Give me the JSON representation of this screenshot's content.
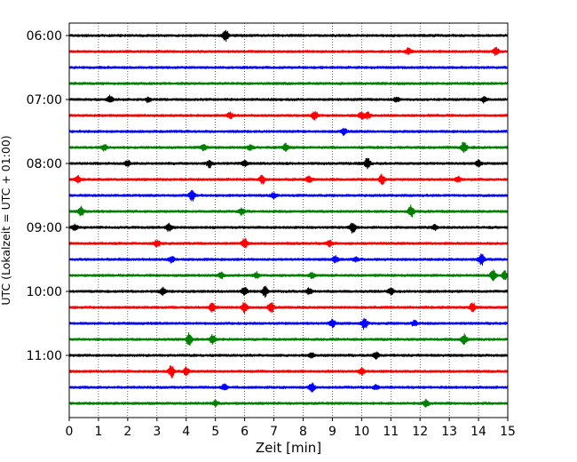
{
  "chart_data": {
    "type": "line",
    "xlabel": "Zeit  [min]",
    "ylabel": "UTC (Lokalzeit = UTC + 01:00)",
    "xlim": [
      0,
      15
    ],
    "x_ticks": [
      "0",
      "1",
      "2",
      "3",
      "4",
      "5",
      "6",
      "7",
      "8",
      "9",
      "10",
      "11",
      "12",
      "13",
      "14",
      "15"
    ],
    "y_ticks": [
      "06:00",
      "07:00",
      "08:00",
      "09:00",
      "10:00",
      "11:00"
    ],
    "grid": "vertical dotted at each minute",
    "trace_interval_minutes": 15,
    "trace_count": 24,
    "trace_colors": [
      "#000000",
      "#ff0000",
      "#0000ff",
      "#008000"
    ],
    "series": [
      {
        "start": "06:00",
        "color": "#000000",
        "events": [
          [
            5.35,
            1.0
          ]
        ]
      },
      {
        "start": "06:15",
        "color": "#ff0000",
        "events": [
          [
            11.6,
            0.5
          ],
          [
            14.6,
            0.6
          ]
        ]
      },
      {
        "start": "06:30",
        "color": "#0000ff",
        "events": []
      },
      {
        "start": "06:45",
        "color": "#008000",
        "events": []
      },
      {
        "start": "07:00",
        "color": "#000000",
        "events": [
          [
            1.4,
            0.6
          ],
          [
            2.7,
            0.4
          ],
          [
            11.2,
            0.4
          ],
          [
            14.2,
            0.5
          ]
        ]
      },
      {
        "start": "07:15",
        "color": "#ff0000",
        "events": [
          [
            5.5,
            0.5
          ],
          [
            8.4,
            0.7
          ],
          [
            10.0,
            0.6
          ],
          [
            10.2,
            0.5
          ]
        ]
      },
      {
        "start": "07:30",
        "color": "#0000ff",
        "events": [
          [
            9.4,
            0.5
          ]
        ]
      },
      {
        "start": "07:45",
        "color": "#008000",
        "events": [
          [
            1.2,
            0.5
          ],
          [
            4.6,
            0.5
          ],
          [
            6.2,
            0.5
          ],
          [
            7.4,
            0.6
          ],
          [
            13.5,
            1.0
          ]
        ]
      },
      {
        "start": "08:00",
        "color": "#000000",
        "events": [
          [
            2.0,
            0.5
          ],
          [
            4.8,
            0.6
          ],
          [
            6.0,
            0.4
          ],
          [
            10.2,
            1.0
          ],
          [
            14.0,
            0.5
          ]
        ]
      },
      {
        "start": "08:15",
        "color": "#ff0000",
        "events": [
          [
            0.3,
            0.5
          ],
          [
            6.6,
            0.7
          ],
          [
            8.2,
            0.5
          ],
          [
            10.7,
            0.8
          ],
          [
            13.3,
            0.4
          ]
        ]
      },
      {
        "start": "08:30",
        "color": "#0000ff",
        "events": [
          [
            4.2,
            0.9
          ],
          [
            7.0,
            0.4
          ]
        ]
      },
      {
        "start": "08:45",
        "color": "#008000",
        "events": [
          [
            0.4,
            0.8
          ],
          [
            5.9,
            0.5
          ],
          [
            11.7,
            1.0
          ]
        ]
      },
      {
        "start": "09:00",
        "color": "#000000",
        "events": [
          [
            0.2,
            0.5
          ],
          [
            3.4,
            0.6
          ],
          [
            9.7,
            1.0
          ],
          [
            12.5,
            0.4
          ]
        ]
      },
      {
        "start": "09:15",
        "color": "#ff0000",
        "events": [
          [
            3.0,
            0.6
          ],
          [
            6.0,
            0.9
          ],
          [
            8.9,
            0.5
          ]
        ]
      },
      {
        "start": "09:30",
        "color": "#0000ff",
        "events": [
          [
            3.5,
            0.5
          ],
          [
            9.1,
            0.5
          ],
          [
            9.8,
            0.4
          ],
          [
            14.1,
            1.0
          ]
        ]
      },
      {
        "start": "09:45",
        "color": "#008000",
        "events": [
          [
            5.2,
            0.5
          ],
          [
            6.4,
            0.5
          ],
          [
            8.3,
            0.4
          ],
          [
            14.5,
            0.9
          ],
          [
            14.9,
            0.7
          ]
        ]
      },
      {
        "start": "10:00",
        "color": "#000000",
        "events": [
          [
            3.2,
            0.6
          ],
          [
            6.0,
            0.7
          ],
          [
            6.7,
            0.8
          ],
          [
            8.2,
            0.5
          ],
          [
            11.0,
            0.5
          ]
        ]
      },
      {
        "start": "10:15",
        "color": "#ff0000",
        "events": [
          [
            4.9,
            0.8
          ],
          [
            6.0,
            0.9
          ],
          [
            6.9,
            1.0
          ],
          [
            13.8,
            0.8
          ]
        ]
      },
      {
        "start": "10:30",
        "color": "#0000ff",
        "events": [
          [
            9.0,
            0.6
          ],
          [
            10.1,
            1.0
          ],
          [
            11.8,
            0.4
          ]
        ]
      },
      {
        "start": "10:45",
        "color": "#008000",
        "events": [
          [
            4.1,
            1.0
          ],
          [
            4.9,
            0.8
          ],
          [
            13.5,
            0.8
          ]
        ]
      },
      {
        "start": "11:00",
        "color": "#000000",
        "events": [
          [
            8.3,
            0.4
          ],
          [
            10.5,
            0.5
          ]
        ]
      },
      {
        "start": "11:15",
        "color": "#ff0000",
        "events": [
          [
            3.5,
            1.0
          ],
          [
            4.0,
            0.7
          ],
          [
            10.0,
            0.5
          ]
        ]
      },
      {
        "start": "11:30",
        "color": "#0000ff",
        "events": [
          [
            5.3,
            0.5
          ],
          [
            8.3,
            0.7
          ],
          [
            10.5,
            0.4
          ]
        ]
      },
      {
        "start": "11:45",
        "color": "#008000",
        "events": [
          [
            5.0,
            0.4
          ],
          [
            12.2,
            0.6
          ]
        ]
      }
    ]
  }
}
